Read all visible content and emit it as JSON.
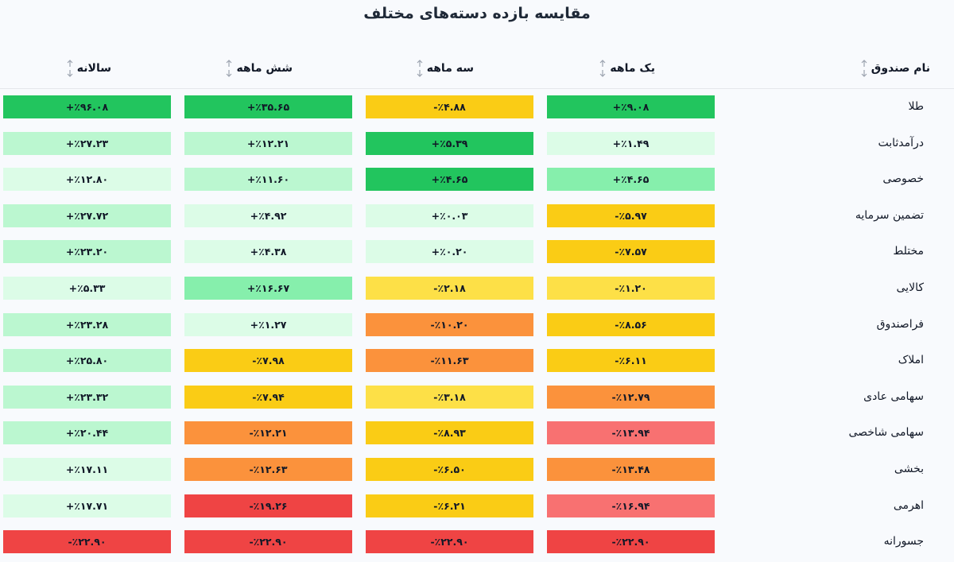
{
  "title": "مقایسه بازده دسته‌های مختلف",
  "columns": [
    {
      "key": "name",
      "label": "نام صندوق"
    },
    {
      "key": "m1",
      "label": "یک ماهه"
    },
    {
      "key": "m3",
      "label": "سه ماهه"
    },
    {
      "key": "m6",
      "label": "شش ماهه"
    },
    {
      "key": "y1",
      "label": "سالانه"
    }
  ],
  "colors": {
    "dark_green": "#22c55e",
    "mid_green": "#86efac",
    "light_green": "#bbf7d0",
    "lighter_green": "#dcfce7",
    "yellow": "#facc15",
    "light_yellow": "#fde047",
    "orange": "#fb923c",
    "pink": "#f87171",
    "red": "#ef4444"
  },
  "rows": [
    {
      "name": "طلا",
      "cells": [
        {
          "v": "+٪۹.۰۸",
          "c": "dark_green"
        },
        {
          "v": "-٪۴.۸۸",
          "c": "yellow"
        },
        {
          "v": "+٪۳۵.۶۵",
          "c": "dark_green"
        },
        {
          "v": "+٪۹۶.۰۸",
          "c": "dark_green"
        }
      ]
    },
    {
      "name": "درآمدثابت",
      "cells": [
        {
          "v": "+٪۱.۴۹",
          "c": "lighter_green"
        },
        {
          "v": "+٪۵.۳۹",
          "c": "dark_green"
        },
        {
          "v": "+٪۱۲.۲۱",
          "c": "light_green"
        },
        {
          "v": "+٪۲۷.۲۳",
          "c": "light_green"
        }
      ]
    },
    {
      "name": "خصوصی",
      "cells": [
        {
          "v": "+٪۴.۶۵",
          "c": "mid_green"
        },
        {
          "v": "+٪۴.۶۵",
          "c": "dark_green"
        },
        {
          "v": "+٪۱۱.۶۰",
          "c": "light_green"
        },
        {
          "v": "+٪۱۲.۸۰",
          "c": "lighter_green"
        }
      ]
    },
    {
      "name": "تضمین سرمایه",
      "cells": [
        {
          "v": "-٪۵.۹۷",
          "c": "yellow"
        },
        {
          "v": "+٪۰.۰۳",
          "c": "lighter_green"
        },
        {
          "v": "+٪۴.۹۲",
          "c": "lighter_green"
        },
        {
          "v": "+٪۲۷.۷۲",
          "c": "light_green"
        }
      ]
    },
    {
      "name": "مختلط",
      "cells": [
        {
          "v": "-٪۷.۵۷",
          "c": "yellow"
        },
        {
          "v": "+٪۰.۲۰",
          "c": "lighter_green"
        },
        {
          "v": "+٪۴.۳۸",
          "c": "lighter_green"
        },
        {
          "v": "+٪۲۳.۲۰",
          "c": "light_green"
        }
      ]
    },
    {
      "name": "کالایی",
      "cells": [
        {
          "v": "-٪۱.۲۰",
          "c": "light_yellow"
        },
        {
          "v": "-٪۲.۱۸",
          "c": "light_yellow"
        },
        {
          "v": "+٪۱۶.۶۷",
          "c": "mid_green"
        },
        {
          "v": "+٪۵.۳۳",
          "c": "lighter_green"
        }
      ]
    },
    {
      "name": "فراصندوق",
      "cells": [
        {
          "v": "-٪۸.۵۶",
          "c": "yellow"
        },
        {
          "v": "-٪۱۰.۲۰",
          "c": "orange"
        },
        {
          "v": "+٪۱.۲۷",
          "c": "lighter_green"
        },
        {
          "v": "+٪۲۳.۲۸",
          "c": "light_green"
        }
      ]
    },
    {
      "name": "املاک",
      "cells": [
        {
          "v": "-٪۶.۱۱",
          "c": "yellow"
        },
        {
          "v": "-٪۱۱.۶۳",
          "c": "orange"
        },
        {
          "v": "-٪۷.۹۸",
          "c": "yellow"
        },
        {
          "v": "+٪۲۵.۸۰",
          "c": "light_green"
        }
      ]
    },
    {
      "name": "سهامی عادی",
      "cells": [
        {
          "v": "-٪۱۲.۷۹",
          "c": "orange"
        },
        {
          "v": "-٪۳.۱۸",
          "c": "light_yellow"
        },
        {
          "v": "-٪۷.۹۴",
          "c": "yellow"
        },
        {
          "v": "+٪۲۳.۳۲",
          "c": "light_green"
        }
      ]
    },
    {
      "name": "سهامی شاخصی",
      "cells": [
        {
          "v": "-٪۱۳.۹۴",
          "c": "pink"
        },
        {
          "v": "-٪۸.۹۳",
          "c": "yellow"
        },
        {
          "v": "-٪۱۲.۲۱",
          "c": "orange"
        },
        {
          "v": "+٪۲۰.۴۴",
          "c": "light_green"
        }
      ]
    },
    {
      "name": "بخشی",
      "cells": [
        {
          "v": "-٪۱۳.۴۸",
          "c": "orange"
        },
        {
          "v": "-٪۶.۵۰",
          "c": "yellow"
        },
        {
          "v": "-٪۱۲.۶۳",
          "c": "orange"
        },
        {
          "v": "+٪۱۷.۱۱",
          "c": "lighter_green"
        }
      ]
    },
    {
      "name": "اهرمی",
      "cells": [
        {
          "v": "-٪۱۶.۹۴",
          "c": "pink"
        },
        {
          "v": "-٪۶.۲۱",
          "c": "yellow"
        },
        {
          "v": "-٪۱۹.۲۶",
          "c": "red"
        },
        {
          "v": "+٪۱۷.۷۱",
          "c": "lighter_green"
        }
      ]
    },
    {
      "name": "جسورانه",
      "cells": [
        {
          "v": "-٪۲۲.۹۰",
          "c": "red"
        },
        {
          "v": "-٪۲۲.۹۰",
          "c": "red"
        },
        {
          "v": "-٪۲۲.۹۰",
          "c": "red"
        },
        {
          "v": "-٪۲۲.۹۰",
          "c": "red"
        }
      ]
    }
  ]
}
